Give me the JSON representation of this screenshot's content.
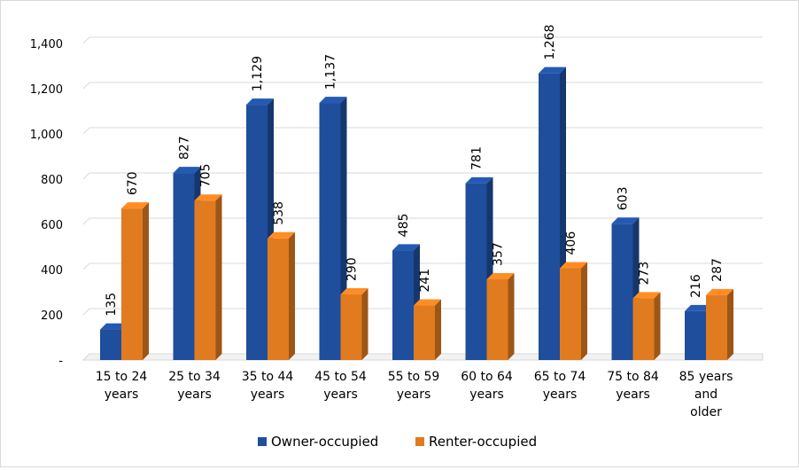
{
  "chart_data": {
    "type": "bar",
    "title": "",
    "xlabel": "",
    "ylabel": "",
    "ylim": [
      0,
      1400
    ],
    "yticks": [
      0,
      200,
      400,
      600,
      800,
      1000,
      1200,
      1400
    ],
    "ytick_labels": [
      "-",
      "200",
      "400",
      "600",
      "800",
      "1,000",
      "1,200",
      "1,400"
    ],
    "grid": true,
    "legend_position": "bottom-center",
    "categories": [
      [
        "15 to 24",
        "years"
      ],
      [
        "25 to 34",
        "years"
      ],
      [
        "35 to 44",
        "years"
      ],
      [
        "45 to 54",
        "years"
      ],
      [
        "55 to 59",
        "years"
      ],
      [
        "60 to 64",
        "years"
      ],
      [
        "65 to 74",
        "years"
      ],
      [
        "75 to 84",
        "years"
      ],
      [
        "85 years",
        "and",
        "older"
      ]
    ],
    "series": [
      {
        "name": "Owner-occupied",
        "color": "#1F4E9C",
        "values": [
          135,
          827,
          1129,
          1137,
          485,
          781,
          1268,
          603,
          216
        ],
        "labels": [
          "135",
          "827",
          "1,129",
          "1,137",
          "485",
          "781",
          "1,268",
          "603",
          "216"
        ]
      },
      {
        "name": "Renter-occupied",
        "color": "#E07B1F",
        "values": [
          670,
          705,
          538,
          290,
          241,
          357,
          406,
          273,
          287
        ],
        "labels": [
          "670",
          "705",
          "538",
          "290",
          "241",
          "357",
          "406",
          "273",
          "287"
        ]
      }
    ]
  }
}
